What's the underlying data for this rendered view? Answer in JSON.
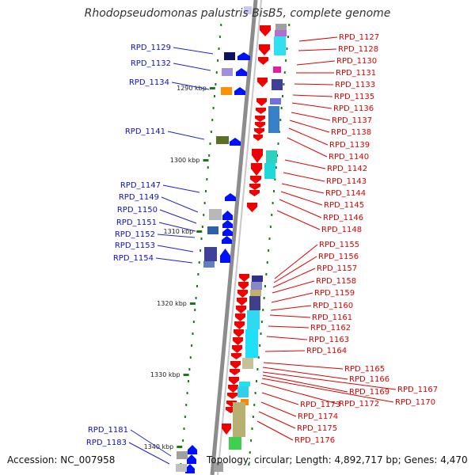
{
  "title": "Rhodopseudomonas palustris BisB5, complete genome",
  "footer": {
    "accession": "Accession: NC_007958",
    "summary": "Topology: circular; Length: 4,892,717 bp; Genes: 4,470"
  },
  "colors": {
    "left_labels": "#1010c0",
    "right_labels": "#e00000",
    "backbone": "#8c8c8c",
    "tick": "#1a7a1a"
  },
  "kbp_ticks": [
    {
      "label": "1290 kbp"
    },
    {
      "label": "1300 kbp"
    },
    {
      "label": "1310 kbp"
    },
    {
      "label": "1320 kbp"
    },
    {
      "label": "1330 kbp"
    },
    {
      "label": "1340 kbp"
    }
  ],
  "left_labels": [
    "RPD_1129",
    "RPD_1132",
    "RPD_1134",
    "RPD_1141",
    "RPD_1147",
    "RPD_1149",
    "RPD_1150",
    "RPD_1151",
    "RPD_1152",
    "RPD_1153",
    "RPD_1154",
    "RPD_1181",
    "RPD_1183"
  ],
  "right_labels": [
    "RPD_1127",
    "RPD_1128",
    "RPD_1130",
    "RPD_1131",
    "RPD_1133",
    "RPD_1135",
    "RPD_1136",
    "RPD_1137",
    "RPD_1138",
    "RPD_1139",
    "RPD_1140",
    "RPD_1142",
    "RPD_1143",
    "RPD_1144",
    "RPD_1145",
    "RPD_1146",
    "RPD_1148",
    "RPD_1155",
    "RPD_1156",
    "RPD_1157",
    "RPD_1158",
    "RPD_1159",
    "RPD_1160",
    "RPD_1161",
    "RPD_1162",
    "RPD_1163",
    "RPD_1164",
    "RPD_1165",
    "RPD_1166",
    "RPD_1167",
    "RPD_1169",
    "RPD_1170",
    "RPD_1172",
    "RPD_1173",
    "RPD_1174",
    "RPD_1175",
    "RPD_1176"
  ]
}
